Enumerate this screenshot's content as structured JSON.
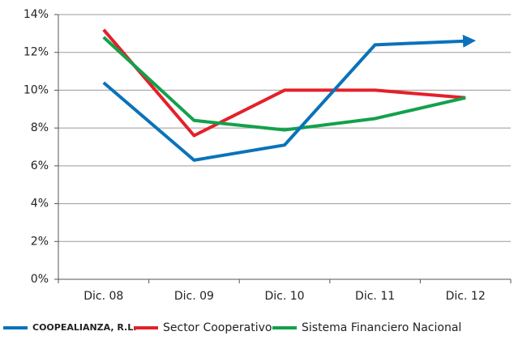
{
  "chart_data": {
    "type": "line",
    "categories": [
      "Dic. 08",
      "Dic. 09",
      "Dic. 10",
      "Dic. 11",
      "Dic. 12"
    ],
    "series": [
      {
        "name": "COOPEALIANZA, R.L.",
        "color": "#0a72ba",
        "values": [
          10.4,
          6.3,
          7.1,
          12.4,
          12.6
        ]
      },
      {
        "name": "Sector Cooperativo",
        "color": "#e4202a",
        "values": [
          13.2,
          7.6,
          10.0,
          10.0,
          9.6
        ]
      },
      {
        "name": "Sistema Financiero Nacional",
        "color": "#12a14b",
        "values": [
          12.8,
          8.4,
          7.9,
          8.5,
          9.6
        ]
      }
    ],
    "ylim": [
      0,
      14
    ],
    "yticks": [
      {
        "value": 0,
        "label": "0%"
      },
      {
        "value": 2,
        "label": "2%"
      },
      {
        "value": 4,
        "label": "4%"
      },
      {
        "value": 6,
        "label": "6%"
      },
      {
        "value": 8,
        "label": "8%"
      },
      {
        "value": 10,
        "label": "10%"
      },
      {
        "value": 12,
        "label": "12%"
      },
      {
        "value": 14,
        "label": "14%"
      }
    ],
    "grid": true,
    "legend": "bottom"
  }
}
